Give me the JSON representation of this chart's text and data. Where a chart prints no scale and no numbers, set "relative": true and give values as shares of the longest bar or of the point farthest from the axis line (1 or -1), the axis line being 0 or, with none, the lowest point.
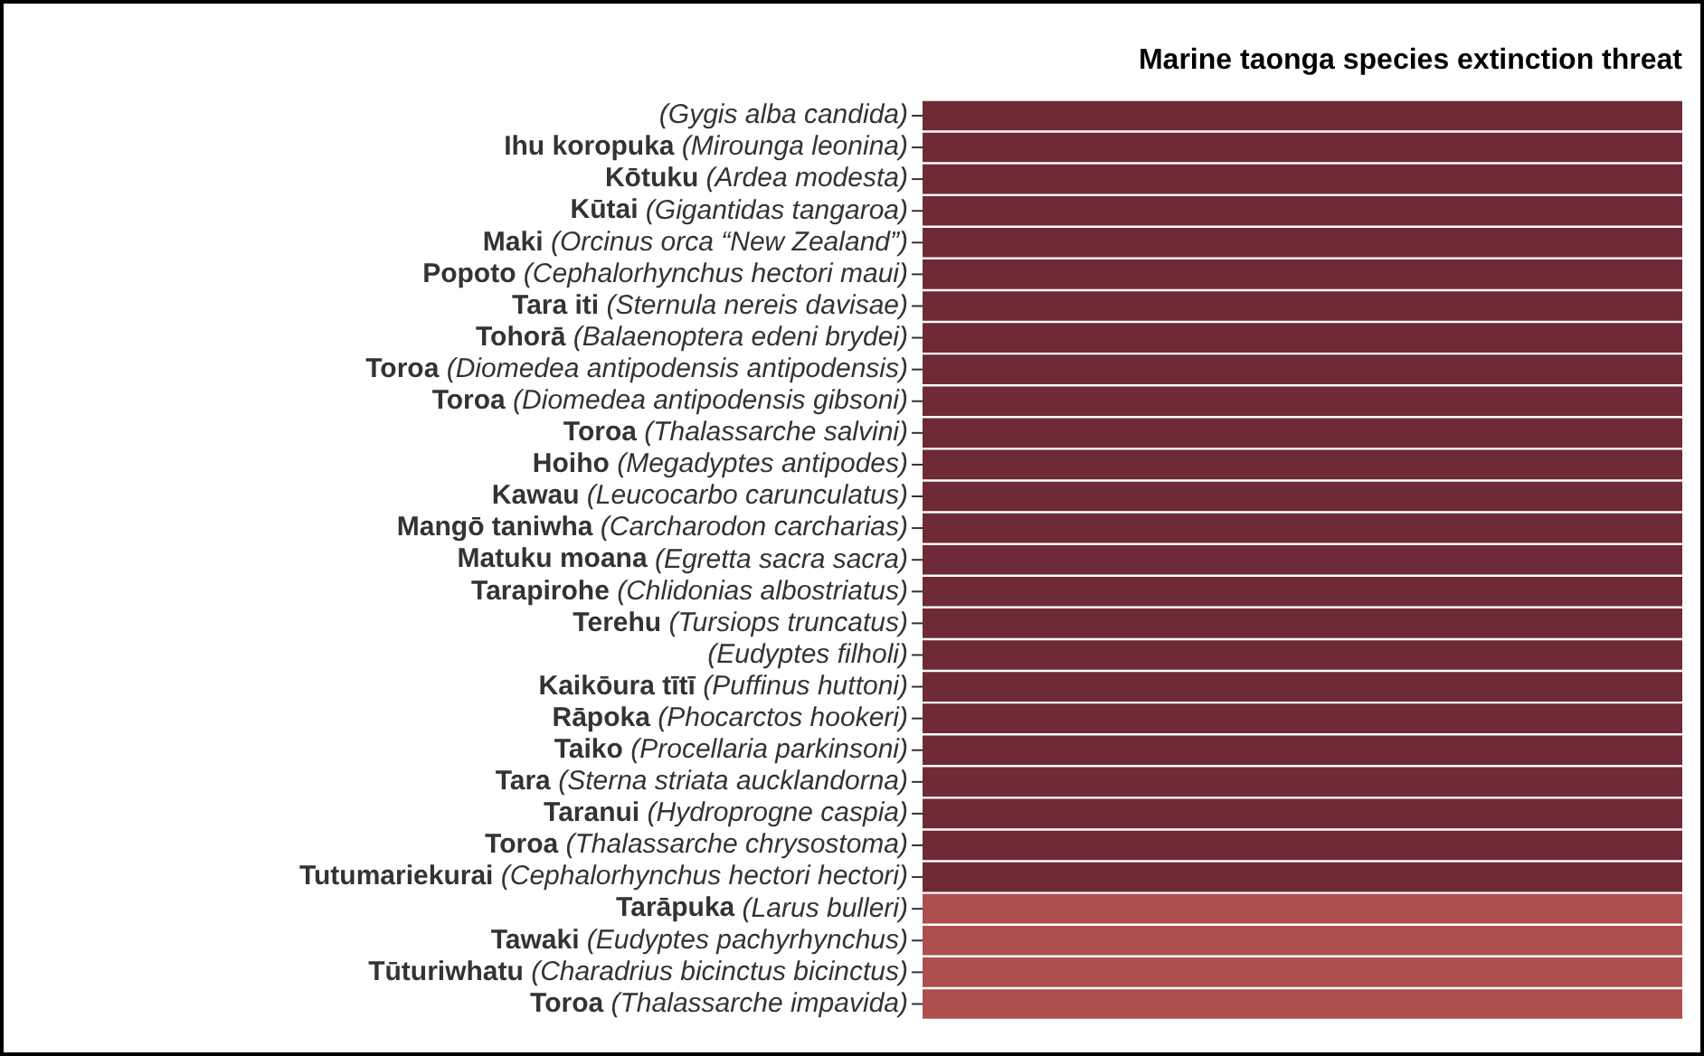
{
  "chart_data": {
    "type": "bar",
    "orientation": "horizontal",
    "relative": true,
    "title": "Marine taonga species extinction threat",
    "categories": [
      "(Gygis alba candida)",
      "Ihu koropuka (Mirounga leonina)",
      "Kōtuku (Ardea modesta)",
      "Kūtai (Gigantidas tangaroa)",
      "Maki (Orcinus orca “New Zealand”)",
      "Popoto (Cephalorhynchus hectori maui)",
      "Tara iti (Sternula nereis davisae)",
      "Tohorā (Balaenoptera edeni brydei)",
      "Toroa (Diomedea antipodensis antipodensis)",
      "Toroa (Diomedea antipodensis gibsoni)",
      "Toroa (Thalassarche salvini)",
      "Hoiho (Megadyptes antipodes)",
      "Kawau (Leucocarbo carunculatus)",
      "Mangō taniwha (Carcharodon carcharias)",
      "Matuku moana (Egretta sacra sacra)",
      "Tarapirohe (Chlidonias albostriatus)",
      "Terehu (Tursiops truncatus)",
      "(Eudyptes filholi)",
      "Kaikōura tītī (Puffinus huttoni)",
      "Rāpoka (Phocarctos hookeri)",
      "Taiko (Procellaria parkinsoni)",
      "Tara (Sterna striata aucklandorna)",
      "Taranui (Hydroprogne caspia)",
      "Toroa (Thalassarche chrysostoma)",
      "Tutumariekurai (Cephalorhynchus hectori hectori)",
      "Tarāpuka (Larus bulleri)",
      "Tawaki (Eudyptes pachyrhynchus)",
      "Tūturiwhatu (Charadrius bicinctus bicinctus)",
      "Toroa (Thalassarche impavida)"
    ],
    "values": [
      1,
      1,
      1,
      1,
      1,
      1,
      1,
      1,
      1,
      1,
      1,
      1,
      1,
      1,
      1,
      1,
      1,
      1,
      1,
      1,
      1,
      1,
      1,
      1,
      1,
      1,
      1,
      1,
      1
    ],
    "colors": [
      "#6e2b35",
      "#6e2b35",
      "#6e2b35",
      "#6e2b35",
      "#6e2b35",
      "#6e2b35",
      "#6e2b35",
      "#6e2b35",
      "#6e2b35",
      "#6e2b35",
      "#6e2b35",
      "#6e2b35",
      "#6e2b35",
      "#6e2b35",
      "#6e2b35",
      "#6e2b35",
      "#6e2b35",
      "#6e2b35",
      "#6e2b35",
      "#6e2b35",
      "#6e2b35",
      "#6e2b35",
      "#6e2b35",
      "#6e2b35",
      "#6e2b35",
      "#ae4f4f",
      "#ae4f4f",
      "#ae4f4f",
      "#ae4f4f"
    ]
  }
}
